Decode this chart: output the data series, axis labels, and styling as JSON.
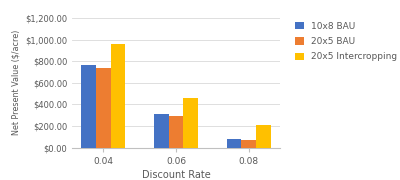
{
  "categories": [
    "0.04",
    "0.06",
    "0.08"
  ],
  "series": {
    "10x8 BAU": [
      765,
      315,
      82
    ],
    "20x5 BAU": [
      740,
      293,
      72
    ],
    "20x5 Intercropping": [
      960,
      455,
      205
    ]
  },
  "colors": {
    "10x8 BAU": "#4472C4",
    "20x5 BAU": "#ED7D31",
    "20x5 Intercropping": "#FFC000"
  },
  "ylabel": "Net Present Value ($/acre)",
  "xlabel": "Discount Rate",
  "ylim": [
    0,
    1200
  ],
  "yticks": [
    0,
    200,
    400,
    600,
    800,
    1000,
    1200
  ],
  "ytick_labels": [
    "$0.00",
    "$200.00",
    "$400.00",
    "$600.00",
    "$800.00",
    "$1,000.00",
    "$1,200.00"
  ],
  "bar_width": 0.2,
  "legend_order": [
    "10x8 BAU",
    "20x5 BAU",
    "20x5 Intercropping"
  ],
  "background_color": "#ffffff",
  "grid_color": "#d9d9d9",
  "spine_color": "#c0c0c0",
  "tick_label_color": "#595959",
  "axis_label_color": "#595959"
}
